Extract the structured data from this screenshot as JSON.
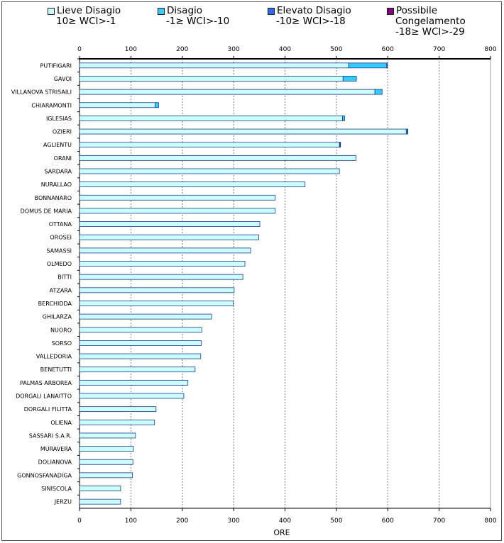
{
  "chart_data": {
    "type": "bar",
    "orientation": "horizontal",
    "stacked": true,
    "xlabel": "ORE",
    "xlim": [
      0,
      800
    ],
    "xticks": [
      "0",
      "100",
      "200",
      "300",
      "400",
      "500",
      "600",
      "700",
      "800"
    ],
    "legend": [
      {
        "name": "Lieve Disagio",
        "range": "10≥ WCI>-1",
        "color": "#ccffff"
      },
      {
        "name": "Disagio",
        "range": "-1≥ WCI>-10",
        "color": "#33ccff"
      },
      {
        "name": "Elevato Disagio",
        "range": "-10≥ WCI>-18",
        "color": "#3366ff"
      },
      {
        "name": "Possibile",
        "name2": "Congelamento",
        "range": "-18≥ WCI>-29",
        "color": "#800080"
      }
    ],
    "categories": [
      "PUTIFIGARI",
      "GAVOI",
      "VILLANOVA STRISAILI",
      "CHIARAMONTI",
      "IGLESIAS",
      "OZIERI",
      "AGLIENTU",
      "ORANI",
      "SARDARA",
      "NURALLAO",
      "BONNANARO",
      "DOMUS DE MARIA",
      "OTTANA",
      "OROSEI",
      "SAMASSI",
      "OLMEDO",
      "BITTI",
      "ATZARA",
      "BERCHIDDA",
      "GHILARZA",
      "NUORO",
      "SORSO",
      "VALLEDORIA",
      "BENETUTTI",
      "PALMAS ARBOREA",
      "DORGALI LANAITTO",
      "DORGALI FILITTA",
      "OLIENA",
      "SASSARI S.A.R.",
      "MURAVERA",
      "DOLIANOVA",
      "GONNOSFANADIGA",
      "SINISCOLA",
      "JERZU"
    ],
    "series": [
      {
        "name": "Lieve Disagio",
        "values": [
          524,
          513,
          575,
          147,
          512,
          636,
          506,
          538,
          506,
          439,
          381,
          381,
          351,
          349,
          333,
          322,
          318,
          301,
          299,
          257,
          238,
          237,
          236,
          225,
          211,
          203,
          149,
          146,
          109,
          105,
          104,
          103,
          80,
          80
        ]
      },
      {
        "name": "Disagio",
        "values": [
          74,
          26,
          14,
          7,
          4,
          2,
          1,
          0,
          0,
          0,
          0,
          0,
          0,
          0,
          0,
          0,
          0,
          0,
          0,
          0,
          0,
          0,
          0,
          0,
          0,
          0,
          0,
          0,
          0,
          0,
          0,
          0,
          0,
          0
        ]
      },
      {
        "name": "Elevato Disagio",
        "values": [
          1,
          0,
          0,
          0,
          0,
          1,
          1,
          0,
          0,
          0,
          0,
          0,
          0,
          0,
          0,
          0,
          0,
          0,
          0,
          0,
          0,
          0,
          0,
          0,
          0,
          0,
          0,
          0,
          0,
          0,
          0,
          0,
          0,
          0
        ]
      },
      {
        "name": "Possibile Congelamento",
        "values": [
          0,
          0,
          0,
          0,
          0,
          0,
          0,
          0,
          0,
          0,
          0,
          0,
          0,
          0,
          0,
          0,
          0,
          0,
          0,
          0,
          0,
          0,
          0,
          0,
          0,
          0,
          0,
          0,
          0,
          0,
          0,
          0,
          0,
          0
        ]
      }
    ]
  }
}
